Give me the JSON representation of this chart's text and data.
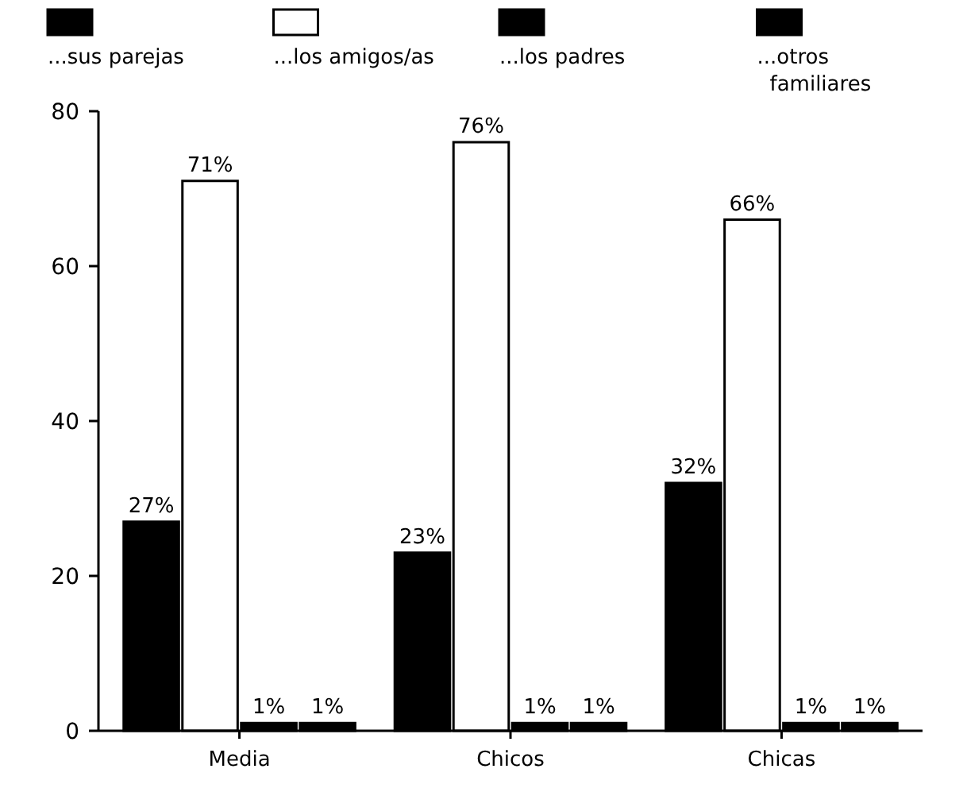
{
  "chart_data": {
    "type": "bar",
    "categories": [
      "Media",
      "Chicos",
      "Chicas"
    ],
    "series": [
      {
        "name": "...sus parejas",
        "color": "#000000",
        "values": [
          27,
          23,
          32
        ],
        "value_labels": [
          "27%",
          "23%",
          "32%"
        ]
      },
      {
        "name": "...los amigos/as",
        "color": "#ffffff",
        "values": [
          71,
          76,
          66
        ],
        "value_labels": [
          "71%",
          "76%",
          "66%"
        ]
      },
      {
        "name": "...los padres",
        "color": "#000000",
        "values": [
          1,
          1,
          1
        ],
        "value_labels": [
          "1%",
          "1%",
          "1%"
        ]
      },
      {
        "name": "...otros familiares",
        "color": "#000000",
        "values": [
          1,
          1,
          1
        ],
        "value_labels": [
          "1%",
          "1%",
          "1%"
        ]
      }
    ],
    "ylim": [
      0,
      80
    ],
    "yticks": [
      0,
      20,
      40,
      60,
      80
    ],
    "grid": false,
    "legend": "top"
  }
}
